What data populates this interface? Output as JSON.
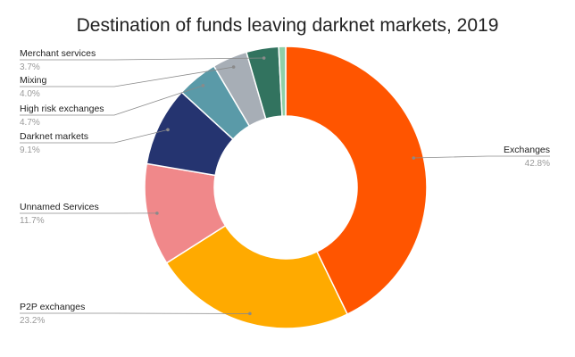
{
  "chart_data": {
    "type": "pie",
    "title": "Destination of funds leaving darknet markets, 2019",
    "slices": [
      {
        "label": "Exchanges",
        "value": 42.8,
        "pct_label": "42.8%",
        "color": "#ff5500"
      },
      {
        "label": "P2P exchanges",
        "value": 23.2,
        "pct_label": "23.2%",
        "color": "#ffaa00"
      },
      {
        "label": "Unnamed Services",
        "value": 11.7,
        "pct_label": "11.7%",
        "color": "#f0888a"
      },
      {
        "label": "Darknet markets",
        "value": 9.1,
        "pct_label": "9.1%",
        "color": "#253470"
      },
      {
        "label": "High risk exchanges",
        "value": 4.7,
        "pct_label": "4.7%",
        "color": "#5a9aa8"
      },
      {
        "label": "Mixing",
        "value": 4.0,
        "pct_label": "4.0%",
        "color": "#a7aeb6"
      },
      {
        "label": "Merchant services",
        "value": 3.7,
        "pct_label": "3.7%",
        "color": "#32735f"
      },
      {
        "label": "",
        "value": 0.8,
        "pct_label": "",
        "color": "#8fcfa8"
      }
    ],
    "donut": true,
    "legend": "none"
  }
}
